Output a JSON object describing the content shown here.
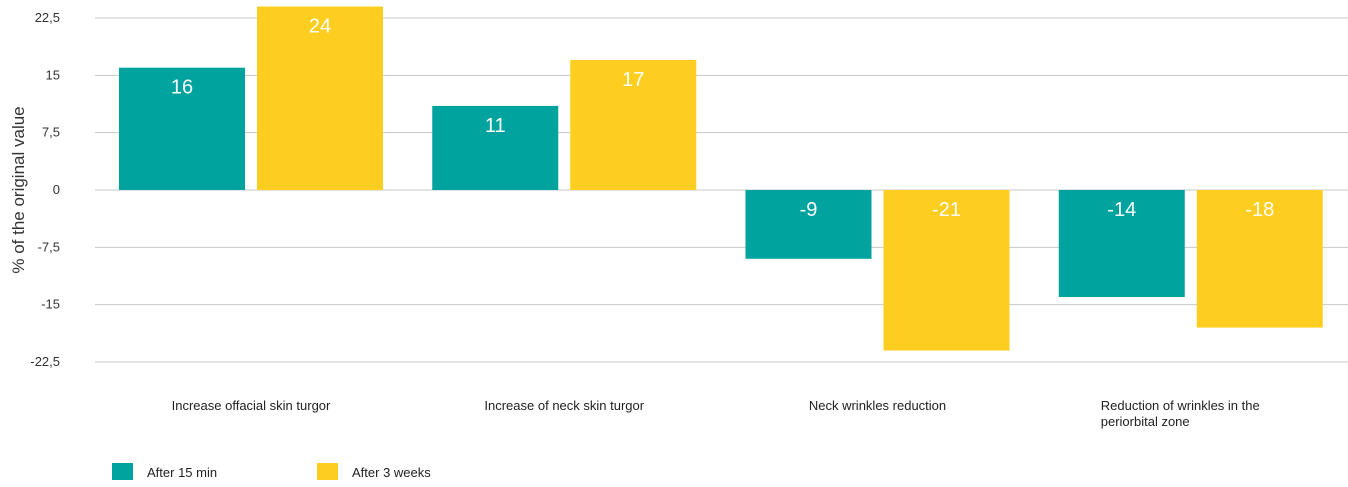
{
  "chart_data": {
    "type": "bar",
    "title": "",
    "xlabel": "",
    "ylabel": "% of the original value",
    "ylim": [
      -22.5,
      22.5
    ],
    "yticks": [
      22.5,
      15,
      7.5,
      0,
      -7.5,
      -15,
      -22.5
    ],
    "ytick_labels": [
      "22,5",
      "15",
      "7,5",
      "0",
      "-7,5",
      "-15",
      "-22,5"
    ],
    "grid": true,
    "legend": "bottom-left",
    "categories": [
      [
        "Increase offacial skin turgor"
      ],
      [
        "Increase of neck skin turgor"
      ],
      [
        "Neck wrinkles reduction"
      ],
      [
        "Reduction of wrinkles in the",
        "periorbital zone"
      ]
    ],
    "series": [
      {
        "name": "After 15 min",
        "color": "#00a39e",
        "values": [
          16,
          11,
          -9,
          -14
        ]
      },
      {
        "name": "After 3 weeks",
        "color": "#fdcd1f",
        "values": [
          24,
          17,
          -21,
          -18
        ]
      }
    ]
  }
}
